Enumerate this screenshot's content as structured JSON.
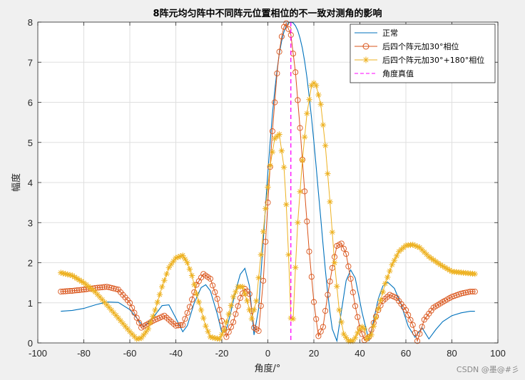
{
  "chart_data": {
    "type": "line",
    "title": "8阵元均匀阵中不同阵元位置相位的不一致对测角的影响",
    "xlabel": "角度/°",
    "ylabel": "幅度",
    "xlim": [
      -100,
      100
    ],
    "ylim": [
      0,
      8
    ],
    "xticks": [
      "-100",
      "-80",
      "-60",
      "-40",
      "-20",
      "0",
      "20",
      "40",
      "60",
      "80",
      "100"
    ],
    "yticks": [
      "0",
      "1",
      "2",
      "3",
      "4",
      "5",
      "6",
      "7",
      "8"
    ],
    "grid": true,
    "legend_position": "top-right",
    "true_angle": 10,
    "series": [
      {
        "name": "正常",
        "color": "#0072bd",
        "marker": "none",
        "x": [
          -90,
          -85,
          -80,
          -75,
          -70,
          -65,
          -60,
          -57,
          -54,
          -50,
          -46,
          -43,
          -40,
          -37,
          -35,
          -32,
          -29,
          -27,
          -25,
          -22,
          -20,
          -18,
          -16,
          -14,
          -12,
          -10,
          -8,
          -6,
          -4,
          -3,
          -2,
          -1,
          0,
          1,
          2,
          3,
          4,
          5,
          6,
          7,
          8,
          9,
          10,
          11,
          12,
          13,
          14,
          15,
          16,
          17,
          18,
          19,
          20,
          21,
          22,
          23,
          24,
          25,
          26,
          27,
          28,
          30,
          32,
          34,
          36,
          38,
          41,
          44,
          46,
          48,
          50,
          52,
          55,
          58,
          61,
          64,
          67,
          70,
          73,
          76,
          80,
          84,
          88,
          90
        ],
        "y": [
          0.79,
          0.81,
          0.86,
          0.95,
          1.02,
          1.01,
          0.83,
          0.62,
          0.4,
          0.62,
          0.93,
          0.95,
          0.62,
          0.28,
          0.43,
          1.0,
          1.38,
          1.45,
          1.3,
          0.72,
          0.25,
          0.34,
          0.79,
          1.3,
          1.71,
          1.86,
          1.42,
          0.2,
          0.85,
          1.72,
          2.55,
          3.42,
          4.25,
          5.0,
          5.7,
          6.3,
          6.8,
          7.22,
          7.53,
          7.76,
          7.91,
          7.98,
          8.0,
          7.98,
          7.91,
          7.79,
          7.6,
          7.35,
          7.02,
          6.62,
          6.14,
          5.6,
          5.02,
          4.4,
          3.75,
          3.1,
          2.45,
          1.82,
          1.25,
          0.76,
          0.35,
          0.05,
          0.8,
          1.55,
          1.82,
          1.62,
          0.75,
          0.05,
          0.57,
          1.1,
          1.42,
          1.52,
          1.36,
          0.95,
          0.42,
          0.14,
          0.38,
          0.1,
          0.33,
          0.53,
          0.68,
          0.75,
          0.79,
          0.79
        ]
      },
      {
        "name": "后四个阵元加30°相位",
        "color": "#d95319",
        "marker": "o",
        "x": [
          -90,
          -85,
          -80,
          -75,
          -70,
          -65,
          -60,
          -55,
          -50,
          -45,
          -40,
          -37,
          -34,
          -31,
          -28,
          -25,
          -22,
          -20,
          -18,
          -15,
          -12,
          -10,
          -8,
          -6,
          -4,
          -2,
          0,
          2,
          4,
          5,
          6,
          7,
          8,
          10,
          12,
          14,
          16,
          18,
          20,
          22,
          24,
          26,
          28,
          30,
          32,
          34,
          36,
          38,
          40,
          42,
          44,
          46,
          48,
          50,
          53,
          56,
          60,
          63,
          65,
          68,
          72,
          76,
          80,
          84,
          88,
          90
        ],
        "y": [
          1.28,
          1.3,
          1.33,
          1.37,
          1.4,
          1.33,
          1.0,
          0.38,
          0.55,
          0.68,
          0.43,
          0.45,
          0.9,
          1.45,
          1.72,
          1.6,
          1.1,
          0.55,
          0.15,
          0.52,
          1.12,
          1.35,
          1.22,
          0.38,
          0.3,
          1.55,
          3.5,
          5.28,
          6.72,
          7.26,
          7.64,
          7.88,
          7.97,
          7.68,
          6.75,
          5.36,
          3.78,
          2.28,
          1.02,
          0.17,
          0.4,
          1.2,
          1.87,
          2.42,
          2.48,
          2.22,
          1.6,
          0.92,
          0.37,
          0.07,
          0.15,
          0.5,
          0.82,
          1.05,
          1.2,
          1.12,
          0.82,
          0.45,
          0.05,
          0.58,
          0.88,
          1.02,
          1.15,
          1.23,
          1.28,
          1.28
        ]
      },
      {
        "name": "后四个阵元加30°+180°相位",
        "color": "#edb120",
        "marker": "*",
        "x": [
          -90,
          -85,
          -80,
          -75,
          -70,
          -65,
          -60,
          -57,
          -55,
          -52,
          -49,
          -46,
          -43,
          -40,
          -37,
          -35,
          -33,
          -31,
          -29,
          -27,
          -25,
          -23,
          -21,
          -19,
          -17,
          -15,
          -13,
          -11,
          -9,
          -7,
          -5,
          -3,
          -1,
          1,
          3,
          5,
          7,
          8,
          9,
          10,
          11,
          12,
          13,
          15,
          17,
          19,
          20,
          21,
          23,
          25,
          27,
          29,
          31,
          33,
          35,
          37,
          38,
          39,
          40,
          41,
          42,
          43,
          45,
          48,
          51,
          54,
          57,
          60,
          63,
          66,
          70,
          75,
          80,
          85,
          90
        ],
        "y": [
          1.75,
          1.68,
          1.5,
          1.27,
          0.95,
          0.62,
          0.28,
          0.1,
          0.12,
          0.35,
          0.82,
          1.4,
          1.88,
          2.12,
          2.18,
          2.0,
          1.68,
          1.22,
          0.82,
          0.42,
          0.15,
          0.12,
          0.1,
          0.32,
          0.72,
          1.15,
          1.4,
          1.4,
          1.05,
          0.6,
          1.05,
          2.2,
          3.35,
          4.42,
          5.1,
          5.2,
          4.38,
          3.45,
          2.2,
          0.62,
          0.6,
          1.88,
          3.0,
          4.55,
          5.72,
          6.42,
          6.48,
          6.42,
          5.95,
          4.92,
          3.52,
          2.0,
          0.82,
          0.22,
          0.05,
          0.05,
          0.13,
          0.25,
          0.35,
          0.4,
          0.35,
          0.1,
          0.2,
          0.85,
          1.48,
          1.95,
          2.28,
          2.43,
          2.45,
          2.38,
          2.15,
          1.95,
          1.78,
          1.75,
          1.72
        ]
      },
      {
        "name": "角度真值",
        "color": "#ff00ff",
        "marker": "dashed-vertical"
      }
    ]
  },
  "watermark": "CSDN @墨@#彡"
}
